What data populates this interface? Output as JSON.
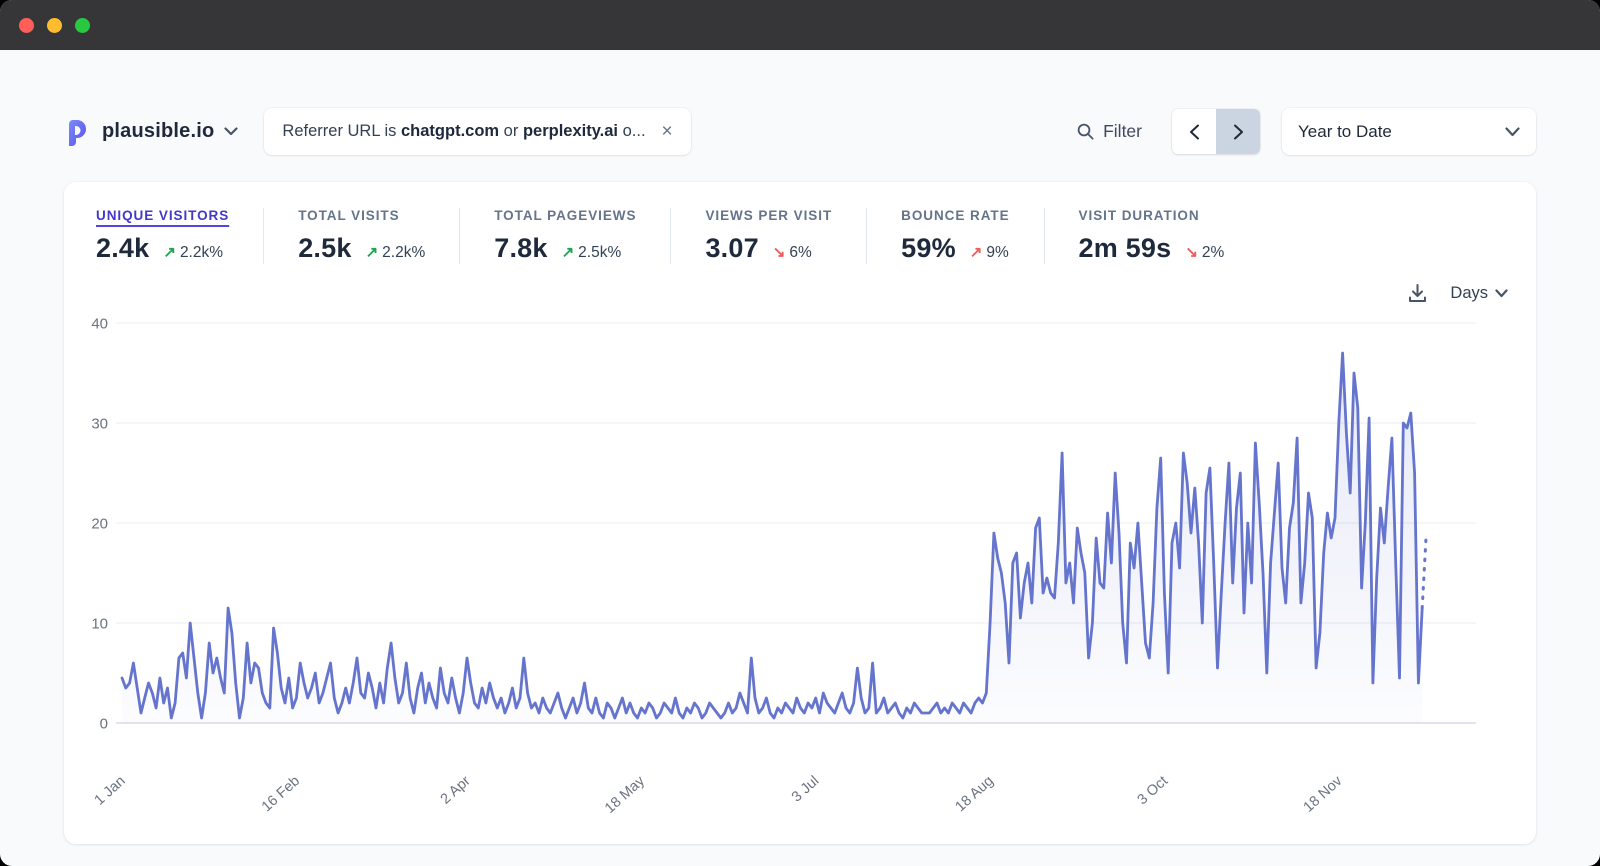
{
  "theme": {
    "page_bg": "#f8fafc",
    "titlebar_bg": "#363638",
    "traffic_red": "#ff5f57",
    "traffic_yellow": "#febc2e",
    "traffic_green": "#28c840",
    "accent": "#4f46e5",
    "accent_dark": "#4338ca",
    "positive": "#21a453",
    "negative": "#f05b5b",
    "line_color": "#6574cd",
    "grid_color": "#e9ecf1",
    "axis_color": "#d8dce2",
    "tick_label_color": "#6b7280"
  },
  "header": {
    "site_name": "plausible.io",
    "filter_pill": {
      "prefix": "Referrer URL is ",
      "bold1": "chatgpt.com",
      "middle": " or ",
      "bold2": "perplexity.ai",
      "suffix": " o...",
      "close_label": "×"
    },
    "filter_button_label": "Filter",
    "period_selected": "Year to Date",
    "interval_selected": "Days"
  },
  "metrics": [
    {
      "label": "UNIQUE VISITORS",
      "value": "2.4k",
      "arrow": "↗",
      "delta": "2.2k%",
      "tone": "green",
      "active": true
    },
    {
      "label": "TOTAL VISITS",
      "value": "2.5k",
      "arrow": "↗",
      "delta": "2.2k%",
      "tone": "green",
      "active": false
    },
    {
      "label": "TOTAL PAGEVIEWS",
      "value": "7.8k",
      "arrow": "↗",
      "delta": "2.5k%",
      "tone": "green",
      "active": false
    },
    {
      "label": "VIEWS PER VISIT",
      "value": "3.07",
      "arrow": "↘",
      "delta": "6%",
      "tone": "red",
      "active": false
    },
    {
      "label": "BOUNCE RATE",
      "value": "59%",
      "arrow": "↗",
      "delta": "9%",
      "tone": "red",
      "active": false
    },
    {
      "label": "VISIT DURATION",
      "value": "2m 59s",
      "arrow": "↘",
      "delta": "2%",
      "tone": "red",
      "active": false
    }
  ],
  "chart_data": {
    "type": "line",
    "title": "Unique visitors over time (daily)",
    "xlabel": "",
    "ylabel": "",
    "ylim": [
      0,
      40
    ],
    "y_ticks": [
      40,
      30,
      20,
      10,
      0
    ],
    "x_tick_labels": [
      "1 Jan",
      "16 Feb",
      "2 Apr",
      "18 May",
      "3 Jul",
      "18 Aug",
      "3 Oct",
      "18 Nov"
    ],
    "x_tick_indices": [
      0,
      46,
      91,
      137,
      183,
      229,
      275,
      321
    ],
    "grid": true,
    "legend": "none",
    "area_fill": true,
    "dash_from_index": 343,
    "series": [
      {
        "name": "Unique visitors",
        "values": [
          4.5,
          3.5,
          4,
          6,
          3.5,
          1,
          2.5,
          4,
          3,
          1.5,
          4.5,
          2,
          3.5,
          0.5,
          2,
          6.5,
          7,
          4.5,
          10,
          6.5,
          3,
          0.5,
          3,
          8,
          5,
          6.5,
          4.5,
          3,
          11.5,
          9,
          4,
          0.5,
          2.5,
          8,
          4,
          6,
          5.5,
          3,
          2,
          1.5,
          9.5,
          7,
          3.5,
          2,
          4.5,
          1.5,
          2.5,
          6,
          4,
          2.5,
          3.5,
          5,
          2,
          3,
          4.5,
          6,
          2.5,
          1,
          2,
          3.5,
          2,
          4,
          6.5,
          3,
          2.5,
          5,
          3.5,
          1.5,
          4,
          2,
          5.5,
          8,
          4.5,
          2,
          3,
          6,
          2.5,
          1,
          3.5,
          5,
          2,
          4,
          2.5,
          1.5,
          5.5,
          3,
          2,
          4.5,
          2.5,
          1,
          3,
          6.5,
          4,
          2,
          1.5,
          3.5,
          2,
          4,
          2.5,
          1.5,
          2.5,
          1,
          2,
          3.5,
          1.5,
          2.5,
          6.5,
          3,
          1.5,
          2,
          1,
          2.5,
          1.5,
          1,
          2,
          3,
          1.5,
          0.5,
          1.5,
          2.5,
          1,
          2,
          4,
          1.5,
          1,
          2.5,
          1,
          0.5,
          2,
          1.5,
          0.5,
          1.5,
          2.5,
          1,
          2,
          1,
          0.5,
          1.5,
          1,
          2,
          1.5,
          0.5,
          1,
          2,
          1.5,
          1,
          2.5,
          1,
          0.5,
          1.5,
          1,
          2,
          1.5,
          0.5,
          1,
          2,
          1.5,
          1,
          0.5,
          1,
          2,
          1,
          1.5,
          3,
          2,
          1,
          6.5,
          2.5,
          1,
          1.5,
          2.5,
          1,
          0.5,
          1.5,
          1,
          2,
          1.5,
          1,
          2.5,
          1.5,
          1,
          2,
          1.5,
          2.5,
          1,
          3,
          2,
          1.5,
          1,
          2,
          3,
          1.5,
          1,
          2,
          5.5,
          2.5,
          1,
          1.5,
          6,
          1,
          1.5,
          2.5,
          1,
          1.5,
          2,
          1,
          0.5,
          1.5,
          1,
          2,
          1.5,
          1,
          1,
          1,
          1.5,
          2,
          1,
          1.5,
          1,
          2,
          1.5,
          1,
          2,
          1.5,
          1,
          2,
          2.5,
          2,
          3,
          10,
          19,
          16.5,
          15,
          12,
          6,
          16,
          17,
          10.5,
          14,
          16,
          12,
          19.5,
          20.5,
          13,
          14.5,
          13,
          12.5,
          18,
          27,
          14,
          16,
          12,
          19.5,
          17,
          15,
          6.5,
          10,
          18.5,
          14,
          13.5,
          21,
          16,
          25,
          19,
          10,
          6,
          18,
          15.5,
          20,
          14,
          8,
          6.5,
          12,
          21.5,
          26.5,
          13,
          5,
          18,
          20,
          15.5,
          27,
          24,
          19,
          23.5,
          18,
          10,
          23,
          25.5,
          16,
          5.5,
          13,
          20,
          26,
          14,
          21.5,
          25,
          11,
          20,
          14,
          28,
          22,
          15,
          5,
          16,
          21,
          26,
          15.5,
          12,
          19.5,
          22,
          28.5,
          12,
          16,
          23,
          20.5,
          5.5,
          9,
          17,
          21,
          18.5,
          20.5,
          30,
          37,
          29,
          23,
          35,
          31.5,
          13.5,
          20,
          30.5,
          4,
          14.5,
          21.5,
          18,
          23.5,
          28.5,
          16,
          4.5,
          30,
          29.5,
          31,
          25,
          4,
          11.5,
          18.5
        ]
      }
    ]
  }
}
